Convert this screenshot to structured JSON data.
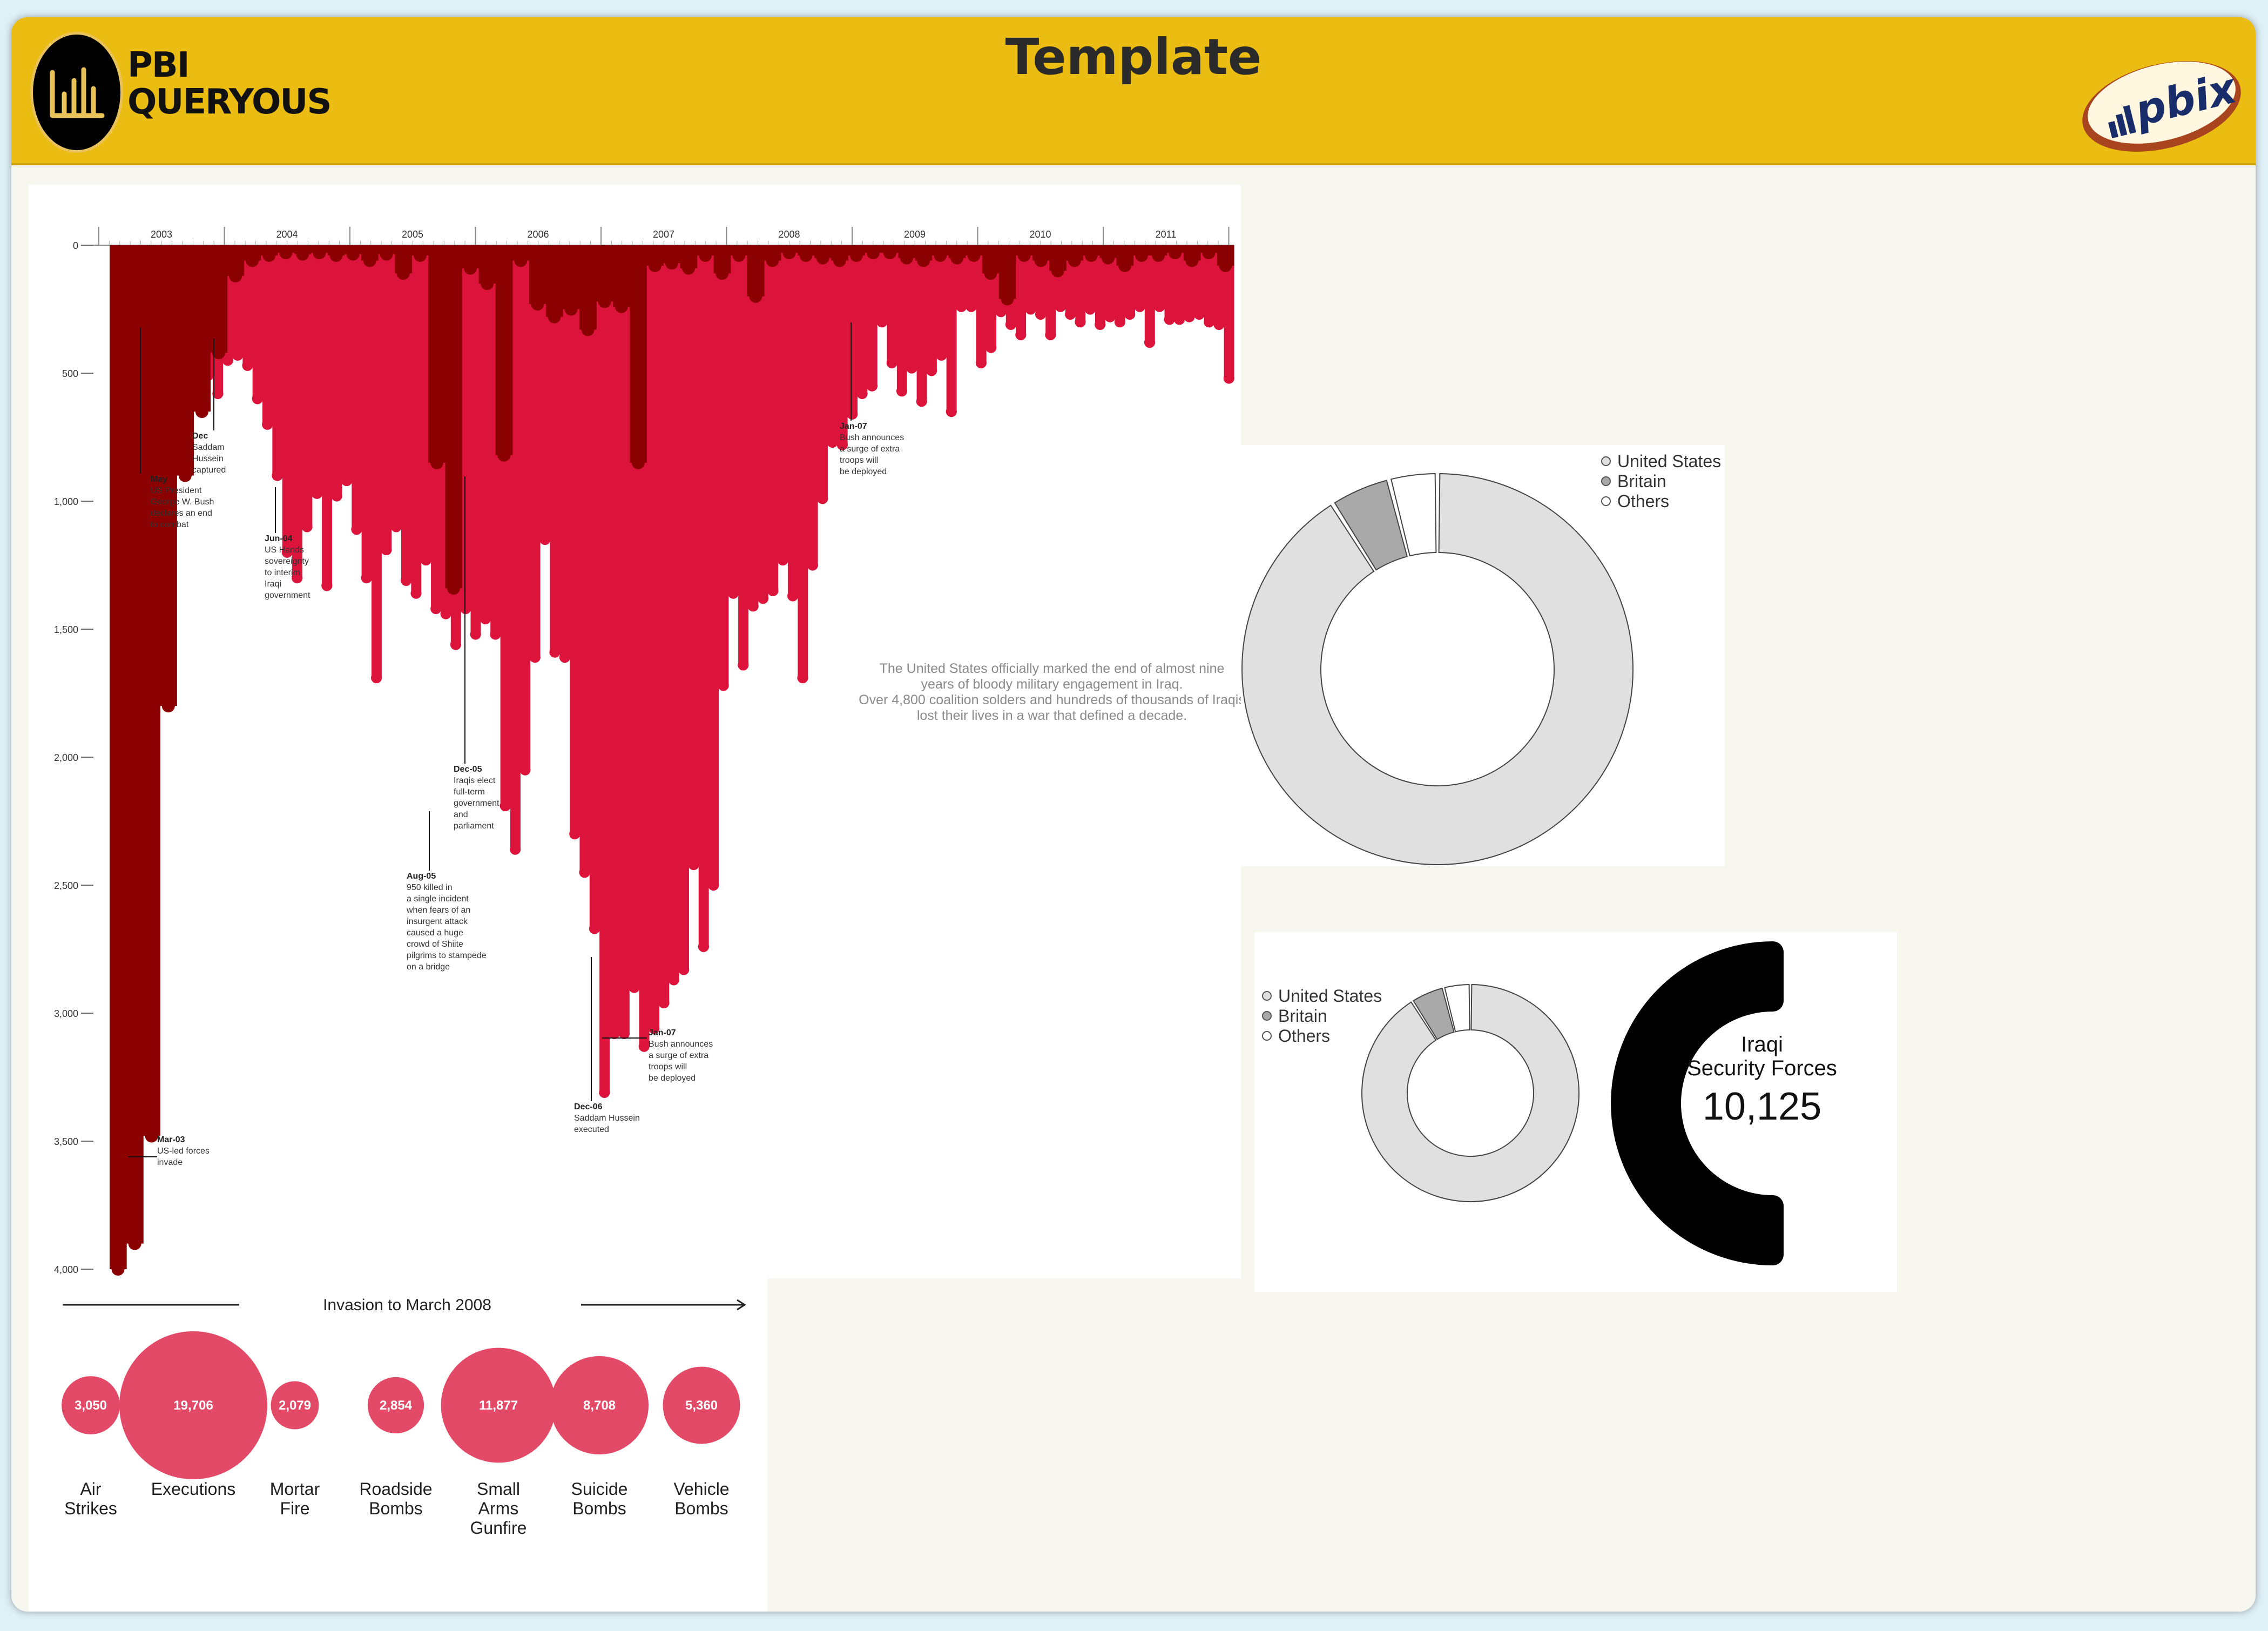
{
  "header": {
    "title": "Template",
    "logo_line1": "PBI",
    "logo_line2": "QUERYOUS",
    "badge_text": "pbix"
  },
  "chart_data": [
    {
      "type": "bar",
      "subtype": "inverted-drip",
      "years": [
        "2003",
        "2004",
        "2005",
        "2006",
        "2007",
        "2008",
        "2009",
        "2010",
        "2011"
      ],
      "y_ticks": [
        "0",
        "500",
        "1,000",
        "1,500",
        "2,000",
        "2,500",
        "3,000",
        "3,500",
        "4,000"
      ],
      "ylim": [
        0,
        4000
      ],
      "series": [
        {
          "color": "#8b0000",
          "values": [
            4000,
            3900,
            3480,
            1800,
            900,
            650,
            420,
            120,
            60,
            40,
            30,
            35,
            30,
            40,
            35,
            60,
            35,
            110,
            40,
            850,
            1340,
            90,
            150,
            820,
            60,
            230,
            280,
            250,
            330,
            220,
            240,
            850,
            80,
            70,
            90,
            40,
            110,
            40,
            200,
            60,
            30,
            40,
            50,
            60,
            40,
            30,
            30,
            50,
            60,
            40,
            50,
            40,
            110,
            210,
            40,
            60,
            100,
            60,
            40,
            50,
            80,
            40,
            40,
            30,
            60,
            30,
            80
          ]
        },
        {
          "color": "#dc143c",
          "values": [
            60,
            110,
            180,
            400,
            590,
            650,
            740,
            480,
            510,
            580,
            450,
            430,
            470,
            600,
            700,
            900,
            1200,
            1300,
            1100,
            970,
            1330,
            980,
            920,
            1110,
            1300,
            1690,
            1190,
            1100,
            1310,
            1360,
            1230,
            1420,
            1440,
            1560,
            1420,
            1520,
            1460,
            1520,
            2190,
            2360,
            2050,
            1610,
            1150,
            1590,
            1610,
            2300,
            2450,
            2670,
            3310,
            3080,
            3080,
            2900,
            3130,
            3060,
            2960,
            2870,
            2830,
            2420,
            2740,
            2500,
            1720,
            1360,
            1640,
            1410,
            1380,
            1350,
            1230,
            1370,
            1690,
            1250,
            990,
            770,
            780,
            660,
            580,
            550,
            300,
            460,
            570,
            480,
            610,
            490,
            430,
            650,
            240,
            240,
            460,
            400,
            260,
            310,
            350,
            250,
            270,
            350,
            240,
            270,
            300,
            250,
            310,
            280,
            300,
            270,
            240,
            380,
            240,
            290,
            290,
            280,
            270,
            300,
            310,
            520
          ]
        }
      ],
      "annotations": [
        {
          "date": "Mar-03",
          "text": [
            "US-led forces",
            "invade"
          ]
        },
        {
          "date": "May",
          "text": [
            "US President",
            "George W. Bush",
            "declares an end",
            "to combat"
          ]
        },
        {
          "date": "Dec",
          "text": [
            "Saddam",
            "Hussein",
            "captured"
          ]
        },
        {
          "date": "Jun-04",
          "text": [
            "US Hands",
            "sovereignty",
            "to interim",
            "Iraqi",
            "government"
          ]
        },
        {
          "date": "Aug-05",
          "text": [
            "950 killed in",
            "a single incident",
            "when fears of an",
            "insurgent attack",
            "caused a huge",
            "crowd of Shiite",
            "pilgrims to stampede",
            "on a bridge"
          ]
        },
        {
          "date": "Dec-05",
          "text": [
            "Iraqis elect",
            "full-term",
            "government",
            "and",
            "parliament"
          ]
        },
        {
          "date": "Dec-06",
          "text": [
            "Saddam Hussein",
            "executed"
          ]
        },
        {
          "date": "Jan-07",
          "text": [
            "Bush announces",
            "a surge of extra",
            "troops will",
            "be deployed"
          ]
        },
        {
          "date": "Jan-07",
          "text": [
            "Bush announces",
            "a surge of extra",
            "troops will",
            "be deployed"
          ]
        }
      ],
      "message": [
        "The United States officially marked the end of almost nine",
        "years of bloody military engagement in Iraq.",
        "Over 4,800 coalition solders and hundreds of thousands of Iraqis",
        "lost their lives in a war that defined a decade."
      ]
    },
    {
      "type": "pie",
      "subtype": "donut",
      "labels": [
        "United States",
        "Britain",
        "Others"
      ],
      "values": [
        91,
        5,
        4
      ],
      "colors": [
        "#e0e0e0",
        "#a9a9a9",
        "#ffffff"
      ]
    },
    {
      "type": "pie",
      "subtype": "donut",
      "labels": [
        "United States",
        "Britain",
        "Others"
      ],
      "values": [
        91,
        5,
        4
      ],
      "colors": [
        "#e0e0e0",
        "#a9a9a9",
        "#ffffff"
      ]
    },
    {
      "type": "bar",
      "subtype": "bubbles",
      "title": "Invasion to March 2008",
      "categories": [
        "Air Strikes",
        "Executions",
        "Mortar Fire",
        "Roadside Bombs",
        "Small Arms Gunfire",
        "Suicide Bombs",
        "Vehicle Bombs"
      ],
      "labels": [
        [
          "Air",
          "Strikes"
        ],
        [
          "Executions"
        ],
        [
          "Mortar",
          "Fire"
        ],
        [
          "Roadside",
          "Bombs"
        ],
        [
          "Small",
          "Arms",
          "Gunfire"
        ],
        [
          "Suicide",
          "Bombs"
        ],
        [
          "Vehicle",
          "Bombs"
        ]
      ],
      "values": [
        3050,
        19706,
        2079,
        2854,
        11877,
        8708,
        5360
      ],
      "value_labels": [
        "3,050",
        "19,706",
        "2,079",
        "2,854",
        "11,877",
        "8,708",
        "5,360"
      ],
      "color": "#e34a67"
    }
  ],
  "legend1": {
    "items": [
      "United States",
      "Britain",
      "Others"
    ]
  },
  "legend2": {
    "items": [
      "United States",
      "Britain",
      "Others"
    ]
  },
  "card": {
    "label_line1": "Iraqi",
    "label_line2": "Security Forces",
    "value": "10,125"
  },
  "colors": {
    "dark_red": "#8b0000",
    "crimson": "#dc143c",
    "bubble": "#e34a67",
    "header": "#ebbd12"
  }
}
